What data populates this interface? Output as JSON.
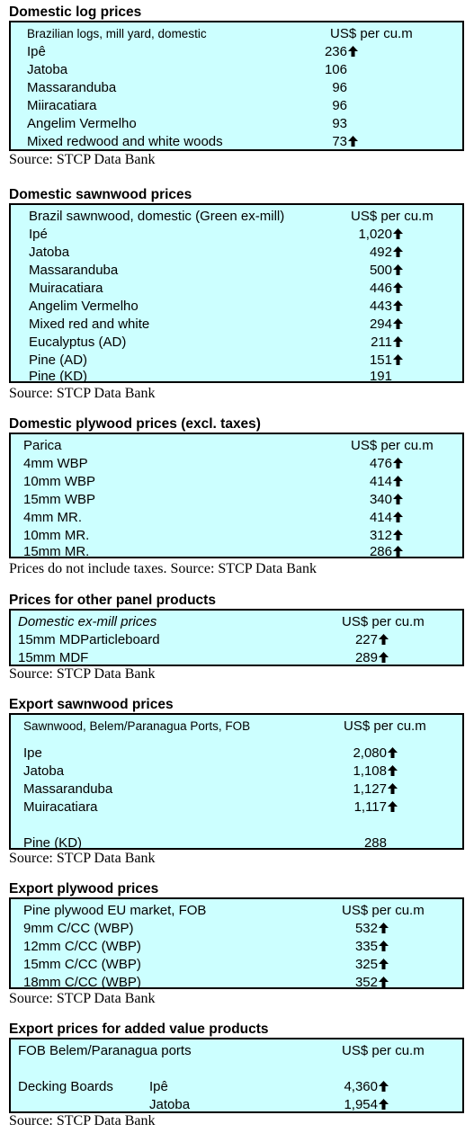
{
  "arrow_icon": "up-arrow-icon",
  "colors": {
    "box_bg": "#ccffff",
    "border": "#000000"
  },
  "sections": [
    {
      "title": "Domestic log prices",
      "header_label": "Brazilian logs, mill yard, domestic",
      "header_value": "US$ per cu.m",
      "rows": [
        {
          "label": "Ipê",
          "value": "236",
          "up": true
        },
        {
          "label": "Jatoba",
          "value": "106",
          "up": false
        },
        {
          "label": "Massaranduba",
          "value": "96",
          "up": false
        },
        {
          "label": "Miiracatiara",
          "value": "96",
          "up": false
        },
        {
          "label": "Angelim Vermelho",
          "value": "93",
          "up": false
        },
        {
          "label": "Mixed redwood and white woods",
          "value": "73",
          "up": true
        }
      ],
      "source": "Source: STCP Data Bank"
    },
    {
      "title": "Domestic sawnwood prices",
      "header_label": "Brazil sawnwood, domestic (Green ex-mill)",
      "header_value": "US$ per cu.m",
      "rows": [
        {
          "label": "Ipé",
          "value": "1,020",
          "up": true
        },
        {
          "label": "Jatoba",
          "value": "492",
          "up": true
        },
        {
          "label": "Massaranduba",
          "value": "500",
          "up": true
        },
        {
          "label": "Muiracatiara",
          "value": "446",
          "up": true
        },
        {
          "label": "Angelim Vermelho",
          "value": "443",
          "up": true
        },
        {
          "label": "Mixed red and white",
          "value": "294",
          "up": true
        },
        {
          "label": "Eucalyptus (AD)",
          "value": "211",
          "up": true
        },
        {
          "label": "Pine (AD)",
          "value": "151",
          "up": true
        },
        {
          "label": "Pine (KD)",
          "value": "191",
          "up": false
        }
      ],
      "source": "Source: STCP Data Bank"
    },
    {
      "title": "Domestic plywood prices (excl. taxes)",
      "header_label": "Parica",
      "header_value": "US$ per cu.m",
      "rows": [
        {
          "label": "4mm WBP",
          "value": "476",
          "up": true
        },
        {
          "label": "10mm WBP",
          "value": "414",
          "up": true
        },
        {
          "label": "15mm WBP",
          "value": "340",
          "up": true
        },
        {
          "label": "4mm MR.",
          "value": "414",
          "up": true
        },
        {
          "label": "10mm MR.",
          "value": "312",
          "up": true
        },
        {
          "label": "15mm MR.",
          "value": "286",
          "up": true
        }
      ],
      "source": "Prices do not include taxes. Source: STCP Data Bank"
    },
    {
      "title": "Prices for other panel products",
      "header_label": "Domestic ex-mill prices",
      "header_value": "US$ per cu.m",
      "rows": [
        {
          "label": "15mm MDParticleboard",
          "value": "227",
          "up": true
        },
        {
          "label": "15mm MDF",
          "value": "289",
          "up": true
        }
      ],
      "source": "Source: STCP Data Bank"
    },
    {
      "title": "Export sawnwood prices",
      "header_label": "Sawnwood, Belem/Paranagua Ports, FOB",
      "header_value": "US$ per cu.m",
      "rows": [
        {
          "label": "Ipe",
          "value": "2,080",
          "up": true
        },
        {
          "label": "Jatoba",
          "value": "1,108",
          "up": true
        },
        {
          "label": "Massaranduba",
          "value": "1,127",
          "up": true
        },
        {
          "label": "Muiracatiara",
          "value": "1,117",
          "up": true
        },
        {
          "label": "Pine (KD)",
          "value": "288",
          "up": false
        }
      ],
      "source": "Source: STCP Data Bank"
    },
    {
      "title": "Export plywood prices",
      "header_label": "Pine plywood EU market, FOB",
      "header_value": "US$ per cu.m",
      "rows": [
        {
          "label": "9mm C/CC (WBP)",
          "value": "532",
          "up": true
        },
        {
          "label": "12mm C/CC (WBP)",
          "value": "335",
          "up": true
        },
        {
          "label": "15mm C/CC (WBP)",
          "value": "325",
          "up": true
        },
        {
          "label": "18mm C/CC (WBP)",
          "value": "352",
          "up": true
        }
      ],
      "source": "Source: STCP Data Bank"
    },
    {
      "title": "Export prices for added value products",
      "header_label": "FOB Belem/Paranagua ports",
      "header_value": "US$ per cu.m",
      "group_label": "Decking Boards",
      "rows": [
        {
          "label": "Ipê",
          "value": "4,360",
          "up": true
        },
        {
          "label": "Jatoba",
          "value": "1,954",
          "up": true
        }
      ],
      "source": "Source: STCP Data Bank"
    }
  ]
}
